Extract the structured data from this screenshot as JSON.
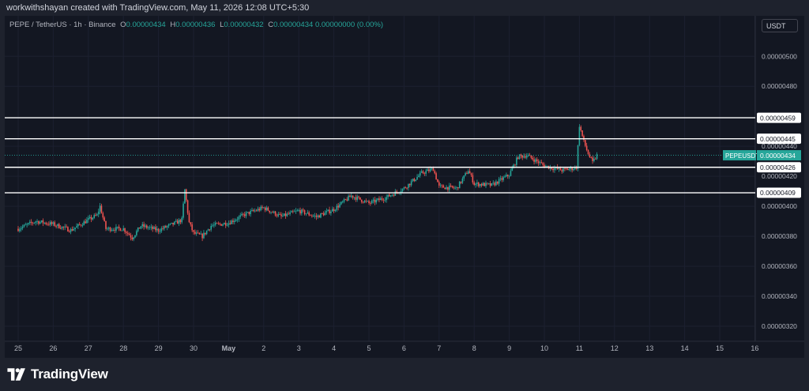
{
  "header": {
    "text": "workwithshayan created with TradingView.com, May 11, 2026 12:08 UTC+5:30"
  },
  "legend": {
    "symbol": "PEPE / TetherUS · 1h · Binance",
    "o_label": "O",
    "o_value": "0.00000434",
    "h_label": "H",
    "h_value": "0.00000436",
    "l_label": "L",
    "l_value": "0.00000432",
    "c_label": "C",
    "c_value": "0.00000434",
    "change": "0.00000000 (0.00%)"
  },
  "currency": "USDT",
  "footer": {
    "brand": "TradingView"
  },
  "colors": {
    "background": "#131722",
    "up": "#26a69a",
    "down": "#ef5350",
    "level_line": "#ffffff",
    "grid": "#1c2030"
  },
  "chart_data": {
    "type": "candlestick",
    "symbol": "PEPEUSDT",
    "timeframe": "1h",
    "ylim": [
      3.1e-06,
      5.27e-06
    ],
    "y_ticks": [
      "0.00000500",
      "0.00000480",
      "0.00000440",
      "0.00000420",
      "0.00000400",
      "0.00000380",
      "0.00000360",
      "0.00000340",
      "0.00000320"
    ],
    "x_ticks": [
      "25",
      "26",
      "27",
      "28",
      "29",
      "30",
      "May",
      "2",
      "3",
      "4",
      "5",
      "6",
      "7",
      "8",
      "9",
      "10",
      "11",
      "12",
      "13",
      "14",
      "15",
      "16"
    ],
    "horizontal_levels": [
      {
        "label": "0.00000459",
        "value": 4.59e-06
      },
      {
        "label": "0.00000445",
        "value": 4.45e-06
      },
      {
        "label": "0.00000426",
        "value": 4.26e-06
      },
      {
        "label": "0.00000409",
        "value": 4.09e-06
      }
    ],
    "last_price": {
      "label": "PEPEUSDT",
      "value_text": "0.00000434",
      "value": 4.34e-06
    },
    "price_path": [
      [
        "04-25 00:00",
        3.85e-06
      ],
      [
        "04-25 12:00",
        3.9e-06
      ],
      [
        "04-26 00:00",
        3.88e-06
      ],
      [
        "04-26 12:00",
        3.84e-06
      ],
      [
        "04-27 00:00",
        3.91e-06
      ],
      [
        "04-27 06:00",
        3.94e-06
      ],
      [
        "04-27 08:00",
        4e-06
      ],
      [
        "04-27 12:00",
        3.85e-06
      ],
      [
        "04-28 00:00",
        3.85e-06
      ],
      [
        "04-28 06:00",
        3.79e-06
      ],
      [
        "04-28 12:00",
        3.87e-06
      ],
      [
        "04-29 00:00",
        3.84e-06
      ],
      [
        "04-29 12:00",
        3.89e-06
      ],
      [
        "04-29 16:00",
        3.91e-06
      ],
      [
        "04-29 18:00",
        4.11e-06
      ],
      [
        "04-29 21:00",
        3.89e-06
      ],
      [
        "04-30 00:00",
        3.82e-06
      ],
      [
        "04-30 06:00",
        3.8e-06
      ],
      [
        "04-30 12:00",
        3.87e-06
      ],
      [
        "05-01 00:00",
        3.89e-06
      ],
      [
        "05-01 12:00",
        3.95e-06
      ],
      [
        "05-02 00:00",
        3.99e-06
      ],
      [
        "05-02 12:00",
        3.93e-06
      ],
      [
        "05-03 00:00",
        3.97e-06
      ],
      [
        "05-03 12:00",
        3.93e-06
      ],
      [
        "05-04 00:00",
        3.98e-06
      ],
      [
        "05-04 12:00",
        4.07e-06
      ],
      [
        "05-05 00:00",
        4.02e-06
      ],
      [
        "05-05 12:00",
        4.06e-06
      ],
      [
        "05-06 00:00",
        4.12e-06
      ],
      [
        "05-06 12:00",
        4.22e-06
      ],
      [
        "05-06 20:00",
        4.25e-06
      ],
      [
        "05-07 00:00",
        4.13e-06
      ],
      [
        "05-07 12:00",
        4.12e-06
      ],
      [
        "05-07 20:00",
        4.24e-06
      ],
      [
        "05-08 00:00",
        4.15e-06
      ],
      [
        "05-08 12:00",
        4.14e-06
      ],
      [
        "05-09 00:00",
        4.21e-06
      ],
      [
        "05-09 06:00",
        4.33e-06
      ],
      [
        "05-09 12:00",
        4.34e-06
      ],
      [
        "05-10 00:00",
        4.27e-06
      ],
      [
        "05-10 12:00",
        4.24e-06
      ],
      [
        "05-10 18:00",
        4.25e-06
      ],
      [
        "05-10 22:00",
        4.26e-06
      ],
      [
        "05-11 00:00",
        4.54e-06
      ],
      [
        "05-11 03:00",
        4.43e-06
      ],
      [
        "05-11 06:00",
        4.35e-06
      ],
      [
        "05-11 09:00",
        4.29e-06
      ],
      [
        "05-11 12:00",
        4.34e-06
      ]
    ]
  }
}
